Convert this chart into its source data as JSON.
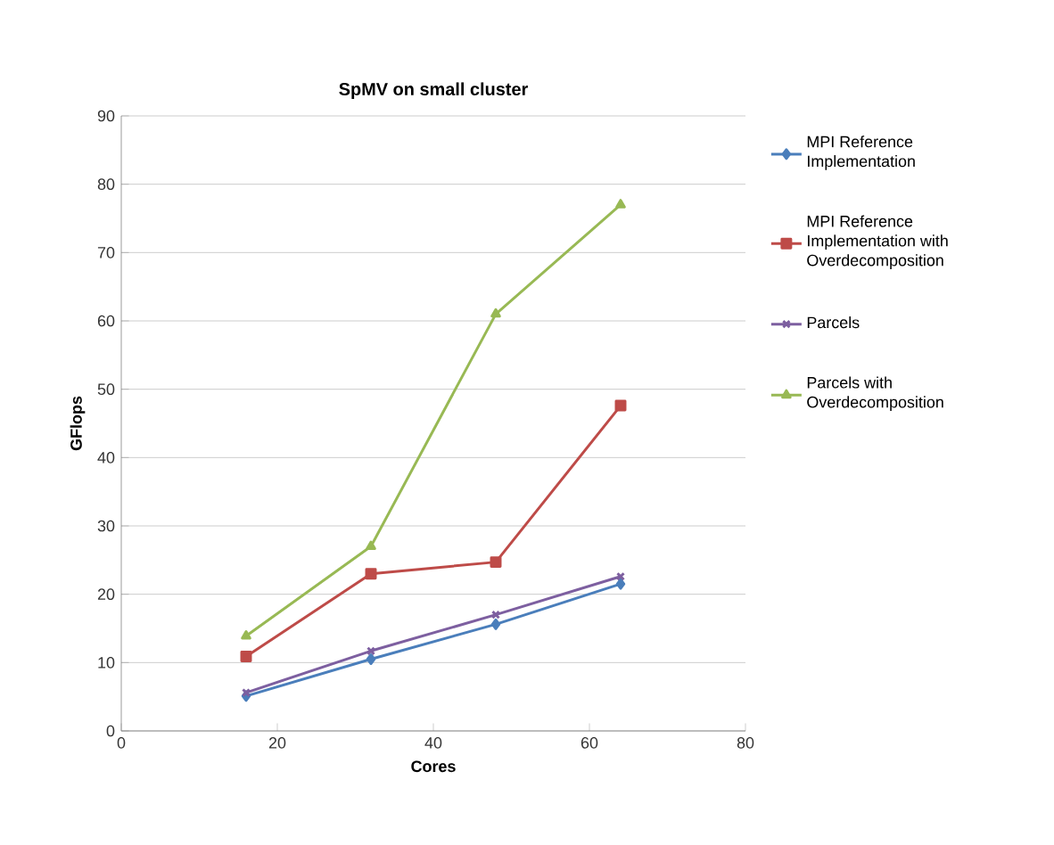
{
  "chart_data": {
    "type": "line",
    "title": "SpMV on small cluster",
    "xlabel": "Cores",
    "ylabel": "GFlops",
    "x": [
      16,
      32,
      48,
      64
    ],
    "series": [
      {
        "name": "MPI Reference Implementation",
        "color": "#4a7ebb",
        "marker": "diamond",
        "values": [
          5.1,
          10.5,
          15.6,
          21.5
        ]
      },
      {
        "name": "MPI Reference Implementation with Overdecomposition",
        "color": "#be4b48",
        "marker": "square",
        "values": [
          10.9,
          23,
          24.7,
          47.6
        ]
      },
      {
        "name": "Parcels",
        "color": "#7d5fa0",
        "marker": "cross",
        "values": [
          5.6,
          11.7,
          17,
          22.6
        ]
      },
      {
        "name": "Parcels with Overdecomposition",
        "color": "#98b954",
        "marker": "triangle",
        "values": [
          13.9,
          27,
          61,
          77
        ]
      }
    ],
    "xlim": [
      0,
      80
    ],
    "xticks": [
      0,
      20,
      40,
      60,
      80
    ],
    "ylim": [
      0,
      90
    ],
    "yticks": [
      0,
      10,
      20,
      30,
      40,
      50,
      60,
      70,
      80,
      90
    ],
    "grid": "y",
    "legend": "right",
    "line_style": "solid"
  }
}
